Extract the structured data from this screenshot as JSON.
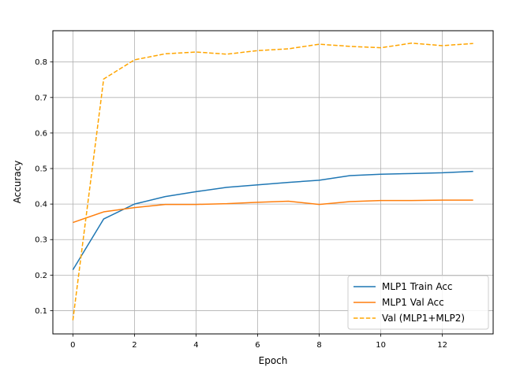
{
  "chart_data": {
    "type": "line",
    "title": "",
    "xlabel": "Epoch",
    "ylabel": "Accuracy",
    "xlim": [
      -0.65,
      13.65
    ],
    "ylim": [
      0.0345,
      0.888
    ],
    "xticks": [
      0,
      2,
      4,
      6,
      8,
      10,
      12
    ],
    "yticks": [
      0.1,
      0.2,
      0.3,
      0.4,
      0.5,
      0.6,
      0.7,
      0.8
    ],
    "grid": true,
    "legend_position": "lower-right",
    "x": [
      0,
      1,
      2,
      3,
      4,
      5,
      6,
      7,
      8,
      9,
      10,
      11,
      12,
      13
    ],
    "series": [
      {
        "name": "MLP1 Train Acc",
        "color": "#1f77b4",
        "style": "solid",
        "values": [
          0.215,
          0.358,
          0.4,
          0.421,
          0.435,
          0.447,
          0.454,
          0.461,
          0.467,
          0.48,
          0.484,
          0.486,
          0.488,
          0.492
        ]
      },
      {
        "name": "MLP1 Val Acc",
        "color": "#ff7f0e",
        "style": "solid",
        "values": [
          0.348,
          0.378,
          0.39,
          0.399,
          0.399,
          0.401,
          0.405,
          0.408,
          0.399,
          0.407,
          0.41,
          0.41,
          0.411,
          0.411
        ]
      },
      {
        "name": "Val (MLP1+MLP2)",
        "color": "#ffa500",
        "style": "dashed",
        "values": [
          0.073,
          0.752,
          0.806,
          0.823,
          0.828,
          0.822,
          0.832,
          0.837,
          0.85,
          0.844,
          0.84,
          0.853,
          0.846,
          0.852
        ]
      }
    ]
  }
}
